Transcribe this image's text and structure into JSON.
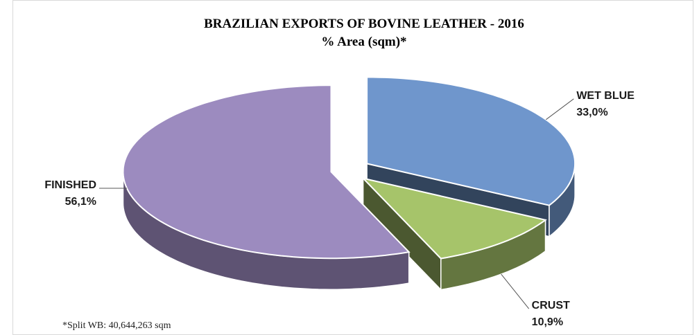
{
  "chart_data": {
    "type": "pie",
    "title": "BRAZILIAN EXPORTS OF BOVINE LEATHER -  2016",
    "subtitle": "% Area (sqm)*",
    "categories": [
      "WET BLUE",
      "CRUST",
      "FINISHED"
    ],
    "values": [
      33.0,
      10.9,
      56.1
    ],
    "value_labels": [
      "33,0%",
      "10,9%",
      "56,1%"
    ],
    "colors": [
      "#6f96cc",
      "#a6c46a",
      "#9c8bbf"
    ],
    "note": "*Split WB: 40,644,263 sqm"
  }
}
